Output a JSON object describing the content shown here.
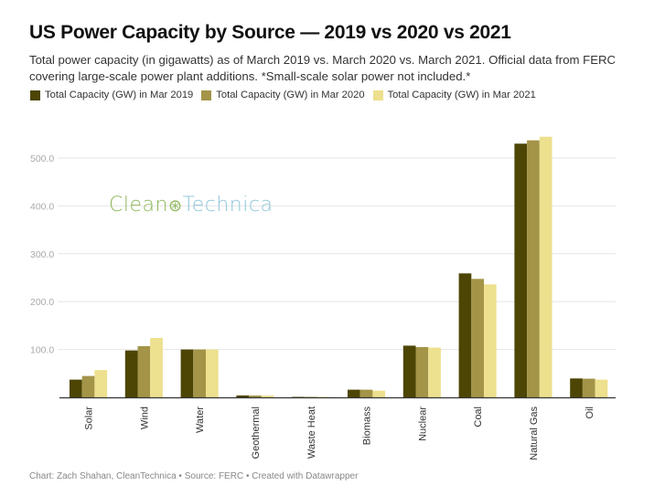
{
  "header": {
    "title": "US Power Capacity by Source — 2019 vs 2020 vs 2021",
    "subtitle": "Total power capacity (in gigawatts) as of March 2019 vs. March 2020 vs. March 2021. Official data from FERC covering large-scale power plant additions. *Small-scale solar power not included.*"
  },
  "logo": {
    "clean": "Clean",
    "mark": "⊛",
    "technica": "Technica"
  },
  "footer": {
    "text": "Chart: Zach Shahan, CleanTechnica • Source: FERC • Created with Datawrapper"
  },
  "chart_data": {
    "type": "bar",
    "title": "US Power Capacity by Source — 2019 vs 2020 vs 2021",
    "xlabel": "",
    "ylabel": "",
    "ylim": [
      0,
      550
    ],
    "yticks": [
      100,
      200,
      300,
      400,
      500
    ],
    "ytick_labels": [
      "100.0",
      "200.0",
      "300.0",
      "400.0",
      "500.0"
    ],
    "grid": true,
    "legend_position": "top-left",
    "categories": [
      "Solar",
      "Wind",
      "Water",
      "Geothermal",
      "Waste Heat",
      "Biomass",
      "Nuclear",
      "Coal",
      "Natural Gas",
      "Oil"
    ],
    "series": [
      {
        "name": "Total Capacity (GW) in Mar 2019",
        "color": "#4d4504",
        "values": [
          37,
          98,
          100,
          4,
          1,
          16,
          108,
          259,
          530,
          39.5
        ]
      },
      {
        "name": "Total Capacity (GW) in Mar 2020",
        "color": "#a39448",
        "values": [
          44.6,
          107,
          100,
          3.8,
          1,
          16,
          105,
          247.5,
          537,
          39
        ]
      },
      {
        "name": "Total Capacity (GW) in Mar 2021",
        "color": "#ede08e",
        "values": [
          57,
          124,
          100,
          3.7,
          1,
          14,
          104,
          236,
          544.5,
          37
        ]
      }
    ]
  }
}
